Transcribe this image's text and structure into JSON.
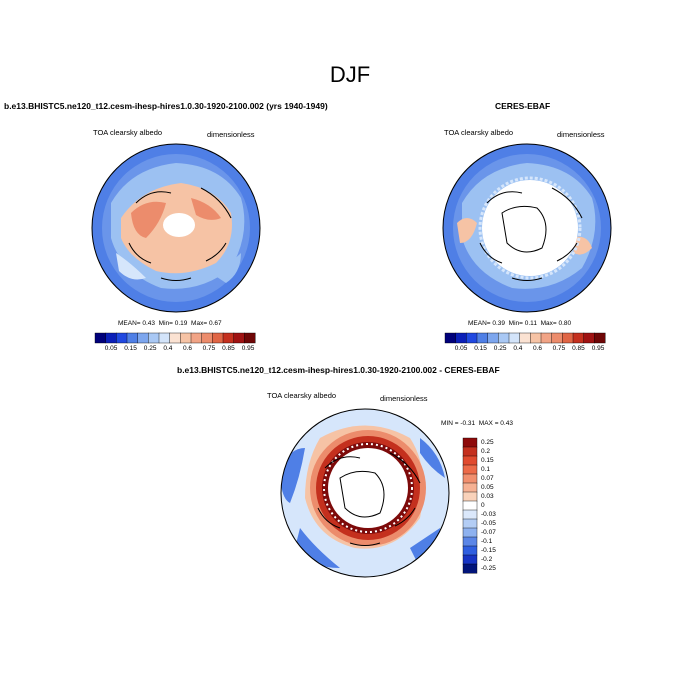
{
  "season": "DJF",
  "colors": {
    "deep_blue": "#1a2bd6",
    "mid_blue": "#4f7fe6",
    "light_blue": "#9cc1f2",
    "pale_blue": "#d6e6fb",
    "peach": "#f6c3a5",
    "salmon": "#ec8c6c",
    "red": "#c4301e",
    "dark_red": "#7d0a0a"
  },
  "panels": [
    {
      "title": "b.e13.BHISTC5.ne120_t12.cesm-ihesp-hires1.0.30-1920-2100.002 (yrs 1940-1949)",
      "variable": "TOA clearsky albedo",
      "units": "dimensionless",
      "stats": {
        "mean_label": "MEAN=",
        "mean": "0.43",
        "min_label": "Min=",
        "min": "0.19",
        "max_label": "Max=",
        "max": "0.67"
      },
      "colorbar_labels": [
        "0.05",
        "0.15",
        "0.25",
        "0.4",
        "0.6",
        "0.75",
        "0.85",
        "0.95"
      ]
    },
    {
      "title": "CERES-EBAF",
      "variable": "TOA clearsky albedo",
      "units": "dimensionless",
      "stats": {
        "mean_label": "MEAN=",
        "mean": "0.39",
        "min_label": "Min=",
        "min": "0.11",
        "max_label": "Max=",
        "max": "0.80"
      },
      "colorbar_labels": [
        "0.05",
        "0.15",
        "0.25",
        "0.4",
        "0.6",
        "0.75",
        "0.85",
        "0.95"
      ]
    },
    {
      "title": "b.e13.BHISTC5.ne120_t12.cesm-ihesp-hires1.0.30-1920-2100.002 - CERES-EBAF",
      "variable": "TOA clearsky albedo",
      "units": "dimensionless",
      "range": {
        "min_label": "MIN =",
        "min": "-0.31",
        "max_label": "MAX =",
        "max": "0.43"
      },
      "colorbar_labels": [
        "0.25",
        "0.2",
        "0.15",
        "0.1",
        "0.07",
        "0.05",
        "0.03",
        "0",
        "-0.03",
        "-0.05",
        "-0.07",
        "-0.1",
        "-0.15",
        "-0.2",
        "-0.25"
      ]
    }
  ]
}
